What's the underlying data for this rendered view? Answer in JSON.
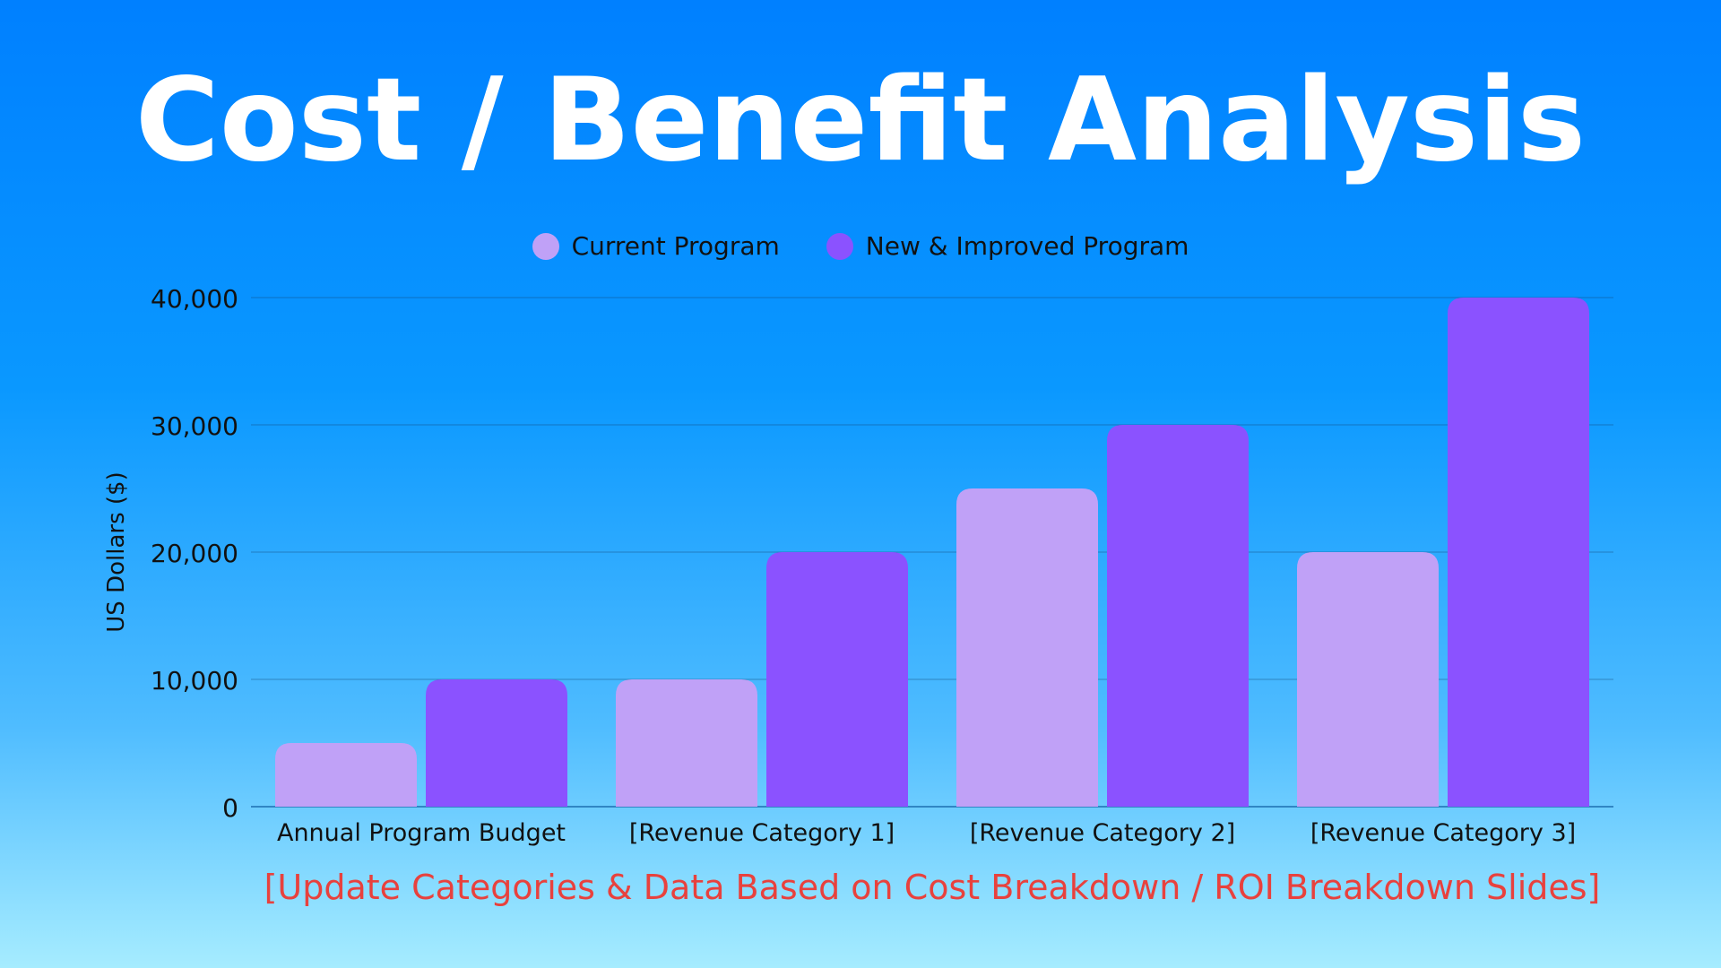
{
  "page": {
    "title": "Cost / Benefit Analysis",
    "footnote": "[Update Categories & Data Based on Cost Breakdown / ROI Breakdown Slides]"
  },
  "colors": {
    "current": "#c0a1f7",
    "improved": "#8b52ff",
    "footnote": "#e8413d",
    "text": "#111111"
  },
  "chart_data": {
    "type": "bar",
    "title": "",
    "xlabel": "",
    "ylabel": "US Dollars ($)",
    "ylim": [
      0,
      40000
    ],
    "yticks": [
      "0",
      "10,000",
      "20,000",
      "30,000",
      "40,000"
    ],
    "ytick_values": [
      0,
      10000,
      20000,
      30000,
      40000
    ],
    "grid": true,
    "legend_position": "top-center",
    "categories": [
      "Annual Program Budget",
      "[Revenue Category 1]",
      "[Revenue Category 2]",
      "[Revenue Category 3]"
    ],
    "series": [
      {
        "name": "Current Program",
        "color": "#c0a1f7",
        "values": [
          5000,
          10000,
          25000,
          20000
        ]
      },
      {
        "name": "New & Improved Program",
        "color": "#8b52ff",
        "values": [
          10000,
          20000,
          30000,
          40000
        ]
      }
    ]
  }
}
